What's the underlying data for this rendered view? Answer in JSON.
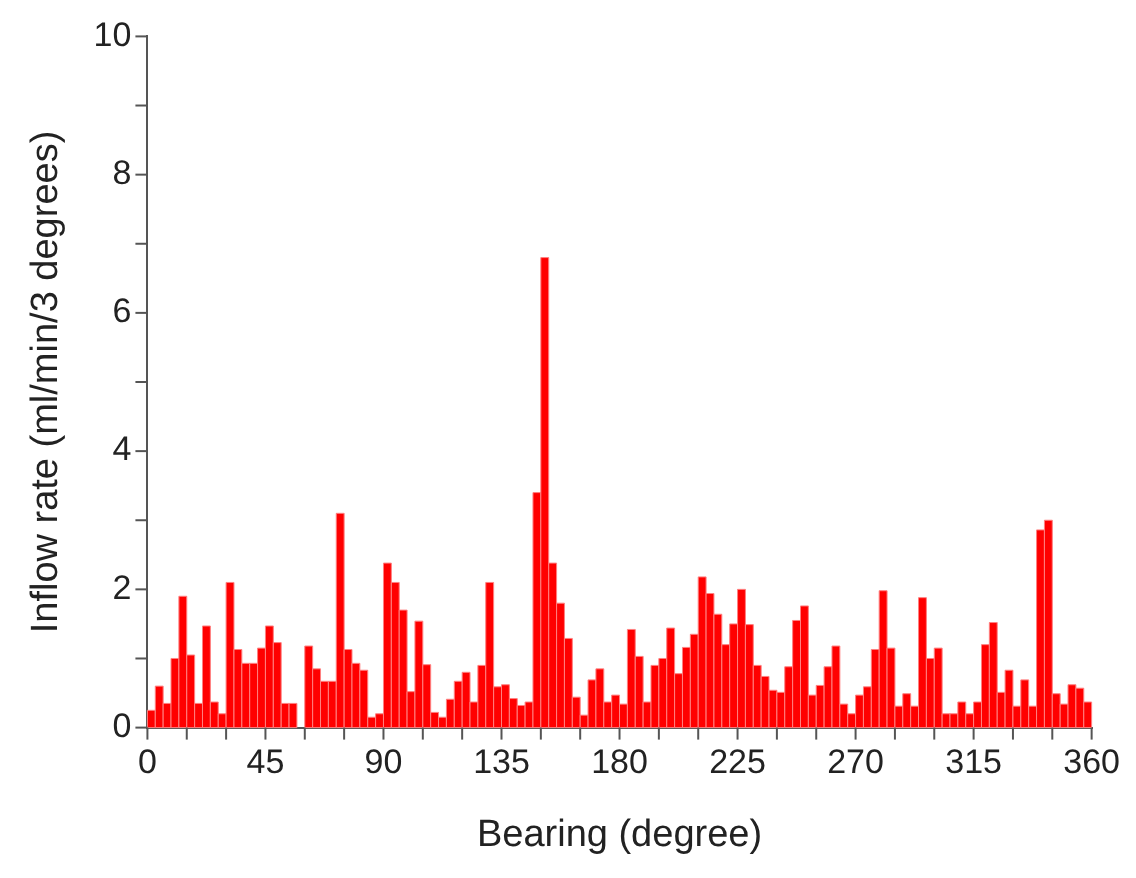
{
  "chart_data": {
    "type": "histogram",
    "xlabel": "Bearing (degree)",
    "ylabel": "Inflow rate (ml/min/3 degrees)",
    "color": "#ff0000",
    "bins": [
      0,
      3,
      6,
      9,
      12,
      15,
      18,
      21,
      24,
      27,
      30,
      33,
      36,
      39,
      42,
      45,
      48,
      51,
      54,
      57,
      60,
      63,
      66,
      69,
      72,
      75,
      78,
      81,
      84,
      87,
      90,
      93,
      96,
      99,
      102,
      105,
      108,
      111,
      114,
      117,
      120,
      123,
      126,
      129,
      132,
      135,
      138,
      141,
      144,
      147,
      150,
      153,
      156,
      159,
      162,
      165,
      168,
      171,
      174,
      177,
      180,
      183,
      186,
      189,
      192,
      195,
      198,
      201,
      204,
      207,
      210,
      213,
      216,
      219,
      222,
      225,
      228,
      231,
      234,
      237,
      240,
      243,
      246,
      249,
      252,
      255,
      258,
      261,
      264,
      267,
      270,
      273,
      276,
      279,
      282,
      285,
      288,
      291,
      294,
      297,
      300,
      303,
      306,
      309,
      312,
      315,
      318,
      321,
      324,
      327,
      330,
      333,
      336,
      339,
      342,
      345,
      348,
      351,
      354,
      357,
      360
    ],
    "values": [
      0.25,
      0.6,
      0.35,
      1.0,
      1.9,
      1.05,
      0.35,
      1.47,
      0.37,
      0.2,
      2.1,
      1.13,
      0.93,
      0.93,
      1.15,
      1.47,
      1.23,
      0.35,
      0.35,
      0,
      1.18,
      0.85,
      0.67,
      0.67,
      3.1,
      1.13,
      0.93,
      0.83,
      0.15,
      0.2,
      2.38,
      2.1,
      1.7,
      0.52,
      1.54,
      0.91,
      0.22,
      0.15,
      0.41,
      0.67,
      0.8,
      0.37,
      0.9,
      2.1,
      0.59,
      0.62,
      0.42,
      0.32,
      0.37,
      3.4,
      6.8,
      2.38,
      1.8,
      1.29,
      0.44,
      0.18,
      0.69,
      0.85,
      0.37,
      0.47,
      0.34,
      1.42,
      1.03,
      0.37,
      0.9,
      1.0,
      1.44,
      0.78,
      1.16,
      1.35,
      2.18,
      1.94,
      1.64,
      1.2,
      1.5,
      2.0,
      1.49,
      0.9,
      0.74,
      0.54,
      0.51,
      0.88,
      1.55,
      1.76,
      0.47,
      0.61,
      0.88,
      1.18,
      0.34,
      0.2,
      0.47,
      0.59,
      1.13,
      1.98,
      1.15,
      0.31,
      0.49,
      0.31,
      1.88,
      1.0,
      1.15,
      0.2,
      0.2,
      0.37,
      0.2,
      0.37,
      1.2,
      1.52,
      0.51,
      0.83,
      0.31,
      0.69,
      0.31,
      2.86,
      3.0,
      0.49,
      0.34,
      0.62,
      0.57,
      0.37
    ],
    "xlim": [
      0,
      360
    ],
    "xticks": [
      0,
      {
        "value": 15,
        "label": null
      },
      {
        "value": 30,
        "label": null
      },
      45,
      {
        "value": 60,
        "label": null
      },
      {
        "value": 75,
        "label": null
      },
      90,
      {
        "value": 105,
        "label": null
      },
      {
        "value": 120,
        "label": null
      },
      135,
      {
        "value": 150,
        "label": null
      },
      {
        "value": 165,
        "label": null
      },
      180,
      {
        "value": 195,
        "label": null
      },
      {
        "value": 210,
        "label": null
      },
      225,
      {
        "value": 240,
        "label": null
      },
      {
        "value": 255,
        "label": null
      },
      270,
      {
        "value": 285,
        "label": null
      },
      {
        "value": 300,
        "label": null
      },
      315,
      {
        "value": 330,
        "label": null
      },
      {
        "value": 345,
        "label": null
      },
      360
    ],
    "ylim": [
      0,
      10
    ],
    "yticks": [
      0,
      {
        "value": 1,
        "label": null
      },
      2,
      {
        "value": 3,
        "label": null
      },
      4,
      {
        "value": 5,
        "label": null
      },
      6,
      {
        "value": 7,
        "label": null
      },
      8,
      {
        "value": 9,
        "label": null
      },
      10
    ],
    "grid": false,
    "legend": false
  }
}
